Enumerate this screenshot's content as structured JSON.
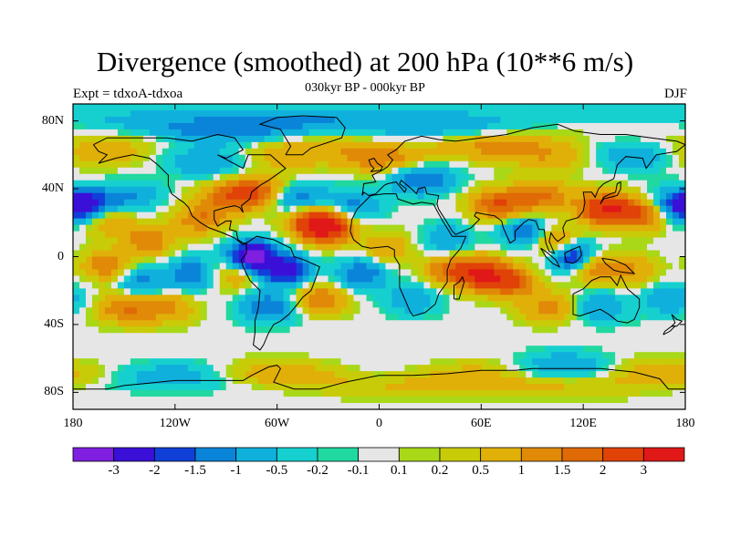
{
  "header": {
    "title": "Divergence (smoothed) at 200 hPa (10**6 m/s)",
    "subtitle": "030kyr BP - 000kyr BP",
    "experiment": "Expt = tdxoA-tdxoa",
    "season": "DJF"
  },
  "map": {
    "projection": "cylindrical-equidistant",
    "lon_range": [
      -180,
      180
    ],
    "lat_range": [
      -90,
      90
    ],
    "y_ticks": [
      {
        "lat": 80,
        "label": "80N"
      },
      {
        "lat": 40,
        "label": "40N"
      },
      {
        "lat": 0,
        "label": "0"
      },
      {
        "lat": -40,
        "label": "40S"
      },
      {
        "lat": -80,
        "label": "80S"
      }
    ],
    "x_ticks": [
      {
        "lon": -180,
        "label": "180"
      },
      {
        "lon": -120,
        "label": "120W"
      },
      {
        "lon": -60,
        "label": "60W"
      },
      {
        "lon": 0,
        "label": "0"
      },
      {
        "lon": 60,
        "label": "60E"
      },
      {
        "lon": 120,
        "label": "120E"
      },
      {
        "lon": 180,
        "label": "180"
      }
    ],
    "features": [
      {
        "lon": -75,
        "lat": 0,
        "value": -3.5
      },
      {
        "lon": -55,
        "lat": -8,
        "value": -2.5
      },
      {
        "lon": -30,
        "lat": 17,
        "value": 3
      },
      {
        "lon": -40,
        "lat": 20,
        "value": 1.8
      },
      {
        "lon": -105,
        "lat": 22,
        "value": 1.5
      },
      {
        "lon": -135,
        "lat": 10,
        "value": 1.5
      },
      {
        "lon": -160,
        "lat": 22,
        "value": 1.2
      },
      {
        "lon": -170,
        "lat": 30,
        "value": -2
      },
      {
        "lon": -145,
        "lat": 35,
        "value": -1
      },
      {
        "lon": 175,
        "lat": 30,
        "value": -2
      },
      {
        "lon": -70,
        "lat": 38,
        "value": 2
      },
      {
        "lon": -88,
        "lat": 35,
        "value": 1.5
      },
      {
        "lon": -50,
        "lat": 35,
        "value": -1.5
      },
      {
        "lon": -15,
        "lat": 30,
        "value": -1.2
      },
      {
        "lon": -100,
        "lat": 55,
        "value": -1
      },
      {
        "lon": -55,
        "lat": 60,
        "value": 1
      },
      {
        "lon": 0,
        "lat": 58,
        "value": 1.5
      },
      {
        "lon": 25,
        "lat": 45,
        "value": -1.5
      },
      {
        "lon": 70,
        "lat": 30,
        "value": 2
      },
      {
        "lon": 95,
        "lat": 35,
        "value": 1.5
      },
      {
        "lon": 85,
        "lat": 15,
        "value": -1.5
      },
      {
        "lon": 105,
        "lat": 8,
        "value": 1.5
      },
      {
        "lon": 133,
        "lat": 28,
        "value": 3
      },
      {
        "lon": 155,
        "lat": 25,
        "value": 2
      },
      {
        "lon": 115,
        "lat": 0,
        "value": -3
      },
      {
        "lon": 125,
        "lat": -5,
        "value": 2
      },
      {
        "lon": 150,
        "lat": -8,
        "value": 1
      },
      {
        "lon": 60,
        "lat": -10,
        "value": 3
      },
      {
        "lon": 78,
        "lat": -15,
        "value": 2
      },
      {
        "lon": 40,
        "lat": -8,
        "value": 1.5
      },
      {
        "lon": 40,
        "lat": 10,
        "value": -1
      },
      {
        "lon": 20,
        "lat": -25,
        "value": -1
      },
      {
        "lon": 5,
        "lat": 5,
        "value": 1
      },
      {
        "lon": -10,
        "lat": -10,
        "value": -1.5
      },
      {
        "lon": -35,
        "lat": -25,
        "value": 1.5
      },
      {
        "lon": -65,
        "lat": -30,
        "value": -1.5
      },
      {
        "lon": -85,
        "lat": -10,
        "value": 1.2
      },
      {
        "lon": -110,
        "lat": -10,
        "value": -1.5
      },
      {
        "lon": -140,
        "lat": -15,
        "value": -1.2
      },
      {
        "lon": -160,
        "lat": -5,
        "value": 1.5
      },
      {
        "lon": -125,
        "lat": -30,
        "value": 1.2
      },
      {
        "lon": -150,
        "lat": -30,
        "value": 1.5
      },
      {
        "lon": 170,
        "lat": -25,
        "value": -1
      },
      {
        "lon": 100,
        "lat": -30,
        "value": 1.2
      },
      {
        "lon": 130,
        "lat": -30,
        "value": -1
      },
      {
        "lon": 150,
        "lat": 60,
        "value": -1
      },
      {
        "lon": 100,
        "lat": 60,
        "value": 1
      },
      {
        "lon": -165,
        "lat": 62,
        "value": 1
      },
      {
        "lon": -90,
        "lat": 75,
        "value": -1.5
      },
      {
        "lon": 30,
        "lat": 75,
        "value": -1
      },
      {
        "lon": 60,
        "lat": 65,
        "value": 1
      },
      {
        "lon": -60,
        "lat": -70,
        "value": 1
      },
      {
        "lon": 60,
        "lat": -72,
        "value": 1
      },
      {
        "lon": 160,
        "lat": -70,
        "value": 1
      },
      {
        "lon": -120,
        "lat": -72,
        "value": -1
      },
      {
        "lon": 110,
        "lat": -65,
        "value": -1
      }
    ]
  },
  "colorbar": {
    "colors": [
      "#7f1fe0",
      "#3a10d8",
      "#1040d8",
      "#0a84d8",
      "#10b0dc",
      "#16d0d0",
      "#20d8a0",
      "#e6e6e6",
      "#a8d818",
      "#c8cc08",
      "#e0b008",
      "#e08a08",
      "#e06a06",
      "#e04208",
      "#e01818"
    ],
    "labels": [
      "-3",
      "-2",
      "-1.5",
      "-1",
      "-0.5",
      "-0.2",
      "-0.1",
      "0.1",
      "0.2",
      "0.5",
      "1",
      "1.5",
      "2",
      "3"
    ],
    "levels": [
      -3,
      -2,
      -1.5,
      -1,
      -0.5,
      -0.2,
      -0.1,
      0.1,
      0.2,
      0.5,
      1,
      1.5,
      2,
      3
    ]
  }
}
